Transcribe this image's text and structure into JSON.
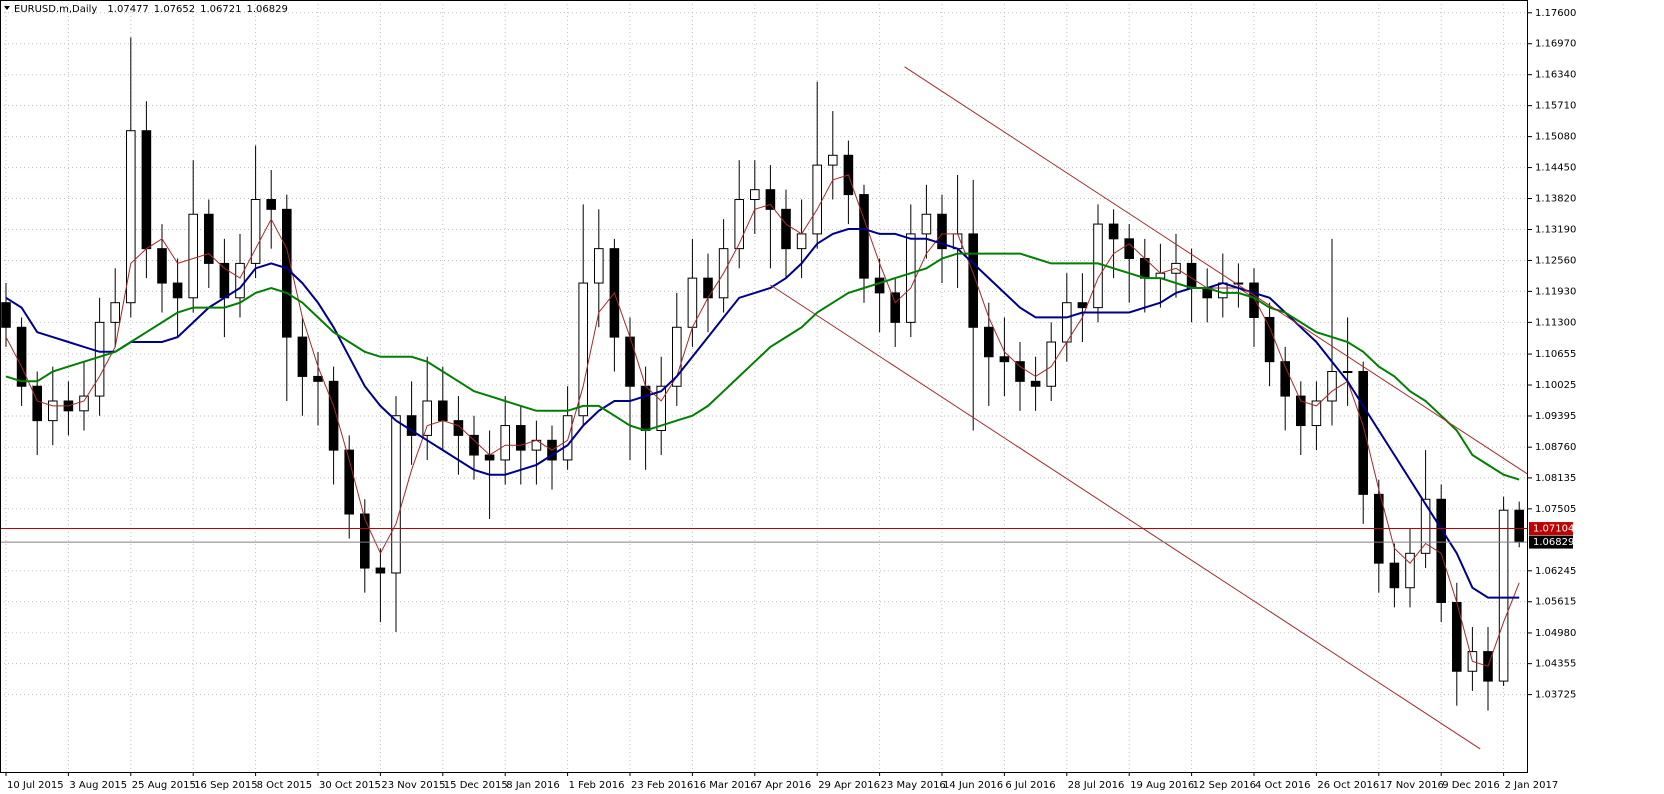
{
  "chart_data": {
    "type": "candlestick",
    "title": "EURUSD.m,Daily",
    "ylim": [
      1.0215,
      1.1786
    ],
    "yticks": [
      {
        "value": 1.176,
        "label": "1.17600"
      },
      {
        "value": 1.1697,
        "label": "1.16970"
      },
      {
        "value": 1.1634,
        "label": "1.16340"
      },
      {
        "value": 1.1571,
        "label": "1.15710"
      },
      {
        "value": 1.1508,
        "label": "1.15080"
      },
      {
        "value": 1.1445,
        "label": "1.14450"
      },
      {
        "value": 1.1382,
        "label": "1.13820"
      },
      {
        "value": 1.1319,
        "label": "1.13190"
      },
      {
        "value": 1.1256,
        "label": "1.12560"
      },
      {
        "value": 1.1193,
        "label": "1.11930"
      },
      {
        "value": 1.113,
        "label": "1.11300"
      },
      1.10655,
      1.10025,
      1.09395,
      {
        "value": 1.0876,
        "label": "1.08760"
      },
      1.08135,
      1.07505,
      1.06245,
      1.05615,
      {
        "value": 1.0498,
        "label": "1.04980"
      },
      1.04355,
      1.03725
    ],
    "xticks": [
      {
        "value": 0,
        "label": "10 Jul 2015"
      },
      {
        "value": 4,
        "label": "3 Aug 2015"
      },
      {
        "value": 8,
        "label": "25 Aug 2015"
      },
      {
        "value": 12,
        "label": "16 Sep 2015"
      },
      {
        "value": 16,
        "label": "8 Oct 2015"
      },
      {
        "value": 20,
        "label": "30 Oct 2015"
      },
      {
        "value": 24,
        "label": "23 Nov 2015"
      },
      {
        "value": 28,
        "label": "15 Dec 2015"
      },
      {
        "value": 32,
        "label": "8 Jan 2016"
      },
      {
        "value": 36,
        "label": "1 Feb 2016"
      },
      {
        "value": 40,
        "label": "23 Feb 2016"
      },
      {
        "value": 44,
        "label": "16 Mar 2016"
      },
      {
        "value": 48,
        "label": "7 Apr 2016"
      },
      {
        "value": 52,
        "label": "29 Apr 2016"
      },
      {
        "value": 56,
        "label": "23 May 2016"
      },
      {
        "value": 60,
        "label": "14 Jun 2016"
      },
      {
        "value": 64,
        "label": "6 Jul 2016"
      },
      {
        "value": 68,
        "label": "28 Jul 2016"
      },
      {
        "value": 72,
        "label": "19 Aug 2016"
      },
      {
        "value": 76,
        "label": "12 Sep 2016"
      },
      {
        "value": 80,
        "label": "4 Oct 2016"
      },
      {
        "value": 84,
        "label": "26 Oct 2016"
      },
      {
        "value": 88,
        "label": "17 Nov 2016"
      },
      {
        "value": 92,
        "label": "9 Dec 2016"
      },
      {
        "value": 96,
        "label": "2 Jan 2017"
      }
    ],
    "grid": true,
    "ohlc": [
      [
        1.117,
        1.121,
        1.108,
        1.112
      ],
      [
        1.112,
        1.114,
        1.096,
        1.1
      ],
      [
        1.1,
        1.103,
        1.086,
        1.093
      ],
      [
        1.093,
        1.104,
        1.088,
        1.097
      ],
      [
        1.097,
        1.101,
        1.09,
        1.095
      ],
      [
        1.095,
        1.105,
        1.091,
        1.098
      ],
      [
        1.098,
        1.118,
        1.094,
        1.113
      ],
      [
        1.113,
        1.124,
        1.108,
        1.117
      ],
      [
        1.117,
        1.171,
        1.114,
        1.152
      ],
      [
        1.152,
        1.158,
        1.122,
        1.128
      ],
      [
        1.128,
        1.133,
        1.115,
        1.121
      ],
      [
        1.121,
        1.126,
        1.11,
        1.118
      ],
      [
        1.118,
        1.146,
        1.115,
        1.135
      ],
      [
        1.135,
        1.138,
        1.12,
        1.125
      ],
      [
        1.125,
        1.13,
        1.11,
        1.118
      ],
      [
        1.118,
        1.131,
        1.114,
        1.125
      ],
      [
        1.125,
        1.149,
        1.122,
        1.138
      ],
      [
        1.138,
        1.144,
        1.128,
        1.136
      ],
      [
        1.136,
        1.139,
        1.097,
        1.11
      ],
      [
        1.11,
        1.114,
        1.094,
        1.102
      ],
      [
        1.102,
        1.107,
        1.092,
        1.101
      ],
      [
        1.101,
        1.104,
        1.08,
        1.087
      ],
      [
        1.087,
        1.09,
        1.069,
        1.074
      ],
      [
        1.074,
        1.077,
        1.058,
        1.063
      ],
      [
        1.063,
        1.067,
        1.052,
        1.062
      ],
      [
        1.062,
        1.098,
        1.05,
        1.094
      ],
      [
        1.094,
        1.101,
        1.084,
        1.09
      ],
      [
        1.09,
        1.106,
        1.085,
        1.097
      ],
      [
        1.097,
        1.104,
        1.087,
        1.093
      ],
      [
        1.093,
        1.098,
        1.082,
        1.09
      ],
      [
        1.09,
        1.094,
        1.081,
        1.086
      ],
      [
        1.086,
        1.091,
        1.073,
        1.085
      ],
      [
        1.085,
        1.098,
        1.08,
        1.092
      ],
      [
        1.092,
        1.096,
        1.08,
        1.087
      ],
      [
        1.087,
        1.093,
        1.08,
        1.089
      ],
      [
        1.089,
        1.092,
        1.079,
        1.085
      ],
      [
        1.085,
        1.1,
        1.083,
        1.094
      ],
      [
        1.094,
        1.137,
        1.092,
        1.121
      ],
      [
        1.121,
        1.136,
        1.112,
        1.128
      ],
      [
        1.128,
        1.13,
        1.103,
        1.11
      ],
      [
        1.11,
        1.114,
        1.085,
        1.1
      ],
      [
        1.1,
        1.104,
        1.083,
        1.091
      ],
      [
        1.091,
        1.106,
        1.086,
        1.1
      ],
      [
        1.1,
        1.119,
        1.096,
        1.112
      ],
      [
        1.112,
        1.13,
        1.108,
        1.122
      ],
      [
        1.122,
        1.127,
        1.111,
        1.118
      ],
      [
        1.118,
        1.134,
        1.115,
        1.128
      ],
      [
        1.128,
        1.146,
        1.124,
        1.138
      ],
      [
        1.138,
        1.146,
        1.131,
        1.14
      ],
      [
        1.14,
        1.145,
        1.124,
        1.136
      ],
      [
        1.136,
        1.14,
        1.122,
        1.128
      ],
      [
        1.128,
        1.138,
        1.122,
        1.131
      ],
      [
        1.131,
        1.162,
        1.128,
        1.145
      ],
      [
        1.145,
        1.156,
        1.138,
        1.147
      ],
      [
        1.147,
        1.15,
        1.133,
        1.139
      ],
      [
        1.139,
        1.141,
        1.117,
        1.122
      ],
      [
        1.122,
        1.126,
        1.111,
        1.119
      ],
      [
        1.119,
        1.122,
        1.108,
        1.113
      ],
      [
        1.113,
        1.137,
        1.11,
        1.131
      ],
      [
        1.131,
        1.141,
        1.126,
        1.135
      ],
      [
        1.135,
        1.139,
        1.121,
        1.128
      ],
      [
        1.128,
        1.143,
        1.12,
        1.131
      ],
      [
        1.131,
        1.142,
        1.091,
        1.112
      ],
      [
        1.112,
        1.117,
        1.096,
        1.106
      ],
      [
        1.106,
        1.114,
        1.098,
        1.105
      ],
      [
        1.105,
        1.109,
        1.095,
        1.101
      ],
      [
        1.101,
        1.106,
        1.095,
        1.1
      ],
      [
        1.1,
        1.113,
        1.097,
        1.109
      ],
      [
        1.109,
        1.123,
        1.105,
        1.117
      ],
      [
        1.117,
        1.123,
        1.109,
        1.116
      ],
      [
        1.116,
        1.137,
        1.113,
        1.133
      ],
      [
        1.133,
        1.136,
        1.122,
        1.13
      ],
      [
        1.13,
        1.133,
        1.117,
        1.126
      ],
      [
        1.126,
        1.13,
        1.115,
        1.122
      ],
      [
        1.122,
        1.129,
        1.116,
        1.123
      ],
      [
        1.123,
        1.131,
        1.118,
        1.125
      ],
      [
        1.125,
        1.128,
        1.113,
        1.12
      ],
      [
        1.12,
        1.124,
        1.113,
        1.118
      ],
      [
        1.118,
        1.127,
        1.114,
        1.121
      ],
      [
        1.121,
        1.125,
        1.116,
        1.121
      ],
      [
        1.121,
        1.124,
        1.108,
        1.114
      ],
      [
        1.114,
        1.117,
        1.1,
        1.105
      ],
      [
        1.105,
        1.108,
        1.091,
        1.098
      ],
      [
        1.098,
        1.101,
        1.086,
        1.092
      ],
      [
        1.092,
        1.101,
        1.087,
        1.097
      ],
      [
        1.097,
        1.13,
        1.092,
        1.103
      ],
      [
        1.103,
        1.114,
        1.096,
        1.103
      ],
      [
        1.103,
        1.105,
        1.072,
        1.078
      ],
      [
        1.078,
        1.081,
        1.058,
        1.064
      ],
      [
        1.064,
        1.068,
        1.055,
        1.059
      ],
      [
        1.059,
        1.071,
        1.055,
        1.066
      ],
      [
        1.066,
        1.087,
        1.063,
        1.077
      ],
      [
        1.077,
        1.08,
        1.052,
        1.056
      ],
      [
        1.056,
        1.06,
        1.035,
        1.042
      ],
      [
        1.042,
        1.051,
        1.038,
        1.046
      ],
      [
        1.046,
        1.051,
        1.034,
        1.04
      ],
      [
        1.04,
        1.0775,
        1.039,
        1.07477
      ],
      [
        1.07477,
        1.07652,
        1.06721,
        1.06829
      ]
    ],
    "up_color": "#ffffff",
    "down_color": "#000000",
    "series": [
      {
        "color": "#a52a2a",
        "width": 1,
        "values": [
          1.11,
          1.104,
          1.097,
          1.096,
          1.096,
          1.097,
          1.102,
          1.108,
          1.125,
          1.128,
          1.13,
          1.125,
          1.126,
          1.127,
          1.124,
          1.122,
          1.128,
          1.134,
          1.128,
          1.114,
          1.104,
          1.096,
          1.085,
          1.073,
          1.066,
          1.072,
          1.083,
          1.092,
          1.093,
          1.092,
          1.089,
          1.086,
          1.088,
          1.088,
          1.089,
          1.087,
          1.089,
          1.1,
          1.115,
          1.119,
          1.11,
          1.1,
          1.097,
          1.102,
          1.112,
          1.118,
          1.123,
          1.129,
          1.136,
          1.137,
          1.133,
          1.131,
          1.136,
          1.142,
          1.143,
          1.134,
          1.125,
          1.117,
          1.12,
          1.127,
          1.131,
          1.131,
          1.123,
          1.114,
          1.107,
          1.104,
          1.102,
          1.104,
          1.109,
          1.114,
          1.122,
          1.127,
          1.129,
          1.126,
          1.123,
          1.124,
          1.122,
          1.12,
          1.12,
          1.12,
          1.118,
          1.112,
          1.104,
          1.097,
          1.096,
          1.099,
          1.101,
          1.092,
          1.079,
          1.067,
          1.064,
          1.068,
          1.066,
          1.056,
          1.044,
          1.043,
          1.052,
          1.06
        ]
      },
      {
        "color": "#00008b",
        "width": 2,
        "values": [
          1.118,
          1.116,
          1.111,
          1.11,
          1.109,
          1.108,
          1.107,
          1.107,
          1.109,
          1.109,
          1.109,
          1.11,
          1.113,
          1.116,
          1.118,
          1.12,
          1.124,
          1.125,
          1.124,
          1.121,
          1.117,
          1.112,
          1.106,
          1.1,
          1.096,
          1.093,
          1.091,
          1.089,
          1.087,
          1.085,
          1.083,
          1.082,
          1.082,
          1.083,
          1.084,
          1.086,
          1.088,
          1.092,
          1.095,
          1.097,
          1.097,
          1.098,
          1.099,
          1.102,
          1.106,
          1.11,
          1.114,
          1.118,
          1.119,
          1.12,
          1.122,
          1.125,
          1.129,
          1.131,
          1.132,
          1.132,
          1.131,
          1.131,
          1.13,
          1.13,
          1.129,
          1.128,
          1.125,
          1.122,
          1.119,
          1.116,
          1.114,
          1.114,
          1.114,
          1.115,
          1.115,
          1.115,
          1.115,
          1.116,
          1.117,
          1.119,
          1.12,
          1.12,
          1.121,
          1.12,
          1.119,
          1.118,
          1.115,
          1.112,
          1.109,
          1.105,
          1.101,
          1.096,
          1.091,
          1.086,
          1.081,
          1.076,
          1.071,
          1.066,
          1.059,
          1.057,
          1.057,
          1.057
        ]
      },
      {
        "color": "#008000",
        "width": 2,
        "values": [
          1.102,
          1.101,
          1.101,
          1.103,
          1.104,
          1.105,
          1.106,
          1.107,
          1.109,
          1.111,
          1.113,
          1.115,
          1.116,
          1.116,
          1.116,
          1.117,
          1.119,
          1.12,
          1.119,
          1.117,
          1.114,
          1.111,
          1.109,
          1.107,
          1.106,
          1.106,
          1.106,
          1.105,
          1.103,
          1.101,
          1.099,
          1.098,
          1.097,
          1.096,
          1.095,
          1.095,
          1.095,
          1.096,
          1.096,
          1.094,
          1.092,
          1.091,
          1.092,
          1.093,
          1.094,
          1.096,
          1.099,
          1.102,
          1.105,
          1.108,
          1.11,
          1.112,
          1.115,
          1.117,
          1.119,
          1.12,
          1.121,
          1.122,
          1.123,
          1.124,
          1.126,
          1.127,
          1.127,
          1.127,
          1.127,
          1.127,
          1.126,
          1.125,
          1.125,
          1.125,
          1.125,
          1.124,
          1.123,
          1.122,
          1.122,
          1.121,
          1.12,
          1.12,
          1.119,
          1.119,
          1.118,
          1.116,
          1.115,
          1.113,
          1.111,
          1.11,
          1.109,
          1.107,
          1.104,
          1.102,
          1.099,
          1.097,
          1.094,
          1.091,
          1.086,
          1.084,
          1.082,
          1.081
        ]
      }
    ],
    "trendlines": [
      {
        "color": "#a52a2a",
        "x": [
          57.6,
          97.6
        ],
        "y": [
          1.165,
          1.082
        ]
      },
      {
        "color": "#a52a2a",
        "x": [
          49,
          94.5
        ],
        "y": [
          1.1206,
          1.0262
        ]
      }
    ],
    "level_line": {
      "value": 1.07104,
      "color": "#c00000"
    },
    "bid_line_color": "#808080"
  }
}
